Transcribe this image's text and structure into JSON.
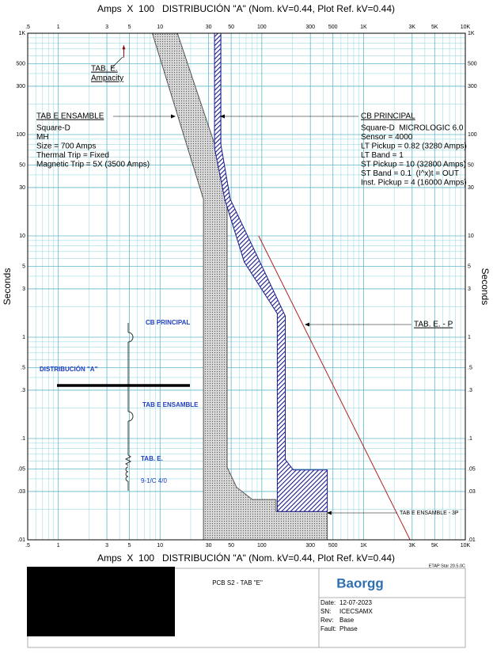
{
  "chart_data": {
    "type": "line",
    "title": "Amps  X  100   DISTRIBUCIÓN \"A\" (Nom. kV=0.44, Plot Ref. kV=0.44)",
    "y_label": "Seconds",
    "log_x": true,
    "log_y": true,
    "grid": true,
    "grid_color": "#9fdce3",
    "xlim": [
      0.5,
      10000
    ],
    "ylim": [
      0.01,
      1000
    ],
    "xticks": [
      {
        "value": 0.5,
        "label": ".5"
      },
      1,
      3,
      5,
      10,
      30,
      50,
      100,
      300,
      500,
      {
        "value": 1000,
        "label": "1K"
      },
      {
        "value": 3000,
        "label": "3K"
      },
      {
        "value": 5000,
        "label": "5K"
      },
      {
        "value": 10000,
        "label": "10K"
      }
    ],
    "yticks": [
      {
        "value": 0.01,
        "label": ".01"
      },
      {
        "value": 0.03,
        "label": ".03"
      },
      {
        "value": 0.05,
        "label": ".05"
      },
      {
        "value": 0.1,
        "label": ".1"
      },
      {
        "value": 0.3,
        "label": ".3"
      },
      {
        "value": 0.5,
        "label": ".5"
      },
      1,
      3,
      5,
      10,
      30,
      50,
      100,
      300,
      500,
      {
        "value": 1000,
        "label": "1K"
      }
    ],
    "xgrid": [
      0.6,
      0.7,
      0.8,
      0.9,
      2,
      4,
      6,
      7,
      8,
      9,
      20,
      40,
      60,
      70,
      80,
      90,
      200,
      400,
      600,
      700,
      800,
      900,
      2000,
      4000,
      6000,
      7000,
      8000,
      9000
    ],
    "ygrid": [
      0.02,
      0.04,
      0.06,
      0.07,
      0.08,
      0.09,
      0.2,
      0.4,
      0.6,
      0.7,
      0.8,
      0.9,
      2,
      4,
      6,
      7,
      8,
      9,
      20,
      40,
      60,
      70,
      80,
      90,
      200,
      400,
      600,
      700,
      800,
      900
    ],
    "series": [
      {
        "name": "TAB E ENSAMBLE",
        "color": "#555555",
        "style": "dotted",
        "x": [
          8.4,
          14.8,
          34.3,
          45.6,
          45.6,
          56.5,
          80.8,
          138,
          138,
          440,
          440,
          26.7,
          26.7
        ],
        "values": [
          1000,
          1000,
          80.7,
          23,
          0.052,
          0.033,
          0.025,
          0.025,
          0.019,
          0.019,
          0.01,
          0.01,
          23
        ]
      },
      {
        "name": "CB PRINCIPAL",
        "color": "#1a1a8c",
        "style": "hatched",
        "x": [
          34.3,
          39.5,
          39.5,
          49,
          96,
          170,
          170,
          204,
          440,
          440,
          142,
          142,
          67.3,
          43.2,
          34.3
        ],
        "values": [
          1000,
          1000,
          80.7,
          23,
          5.5,
          1.62,
          0.062,
          0.049,
          0.049,
          0.019,
          0.019,
          1.71,
          5.5,
          23,
          73.6
        ]
      },
      {
        "name": "TAB. E. - P",
        "color": "#b22222",
        "style": "line",
        "x": [
          93,
          2866
        ],
        "values": [
          10,
          0.01
        ]
      },
      {
        "color": "#8b0000",
        "style": "arrow",
        "x": [
          4.4,
          4.4
        ],
        "values": [
          575,
          760
        ]
      }
    ],
    "annotations": {
      "ampacity": [
        "TAB. E.",
        "Ampacity"
      ],
      "tab_e_info": [
        "Square-D",
        "MH",
        "Size = 700 Amps",
        "Thermal Trip = Fixed",
        "Magnetic Trip = 5X (3500 Amps)"
      ],
      "cb_info": [
        "Square-D  MICROLOGIC 6.0",
        "Sensor = 4000",
        "LT Pickup = 0.82 (3280 Amps)",
        "LT Band = 1",
        "ST Pickup = 10 (32800 Amps)",
        "ST Band = 0.1  (I^x)t = OUT",
        "Inst. Pickup = 4 (16000 Amps)"
      ],
      "tab_e_3p": "TAB E ENSAMBLE - 3P"
    },
    "one_line": {
      "breaker": "CB PRINCIPAL",
      "bus": "DISTRIBUCIÓN \"A\"",
      "feeder": "TAB E ENSAMBLE",
      "load": "TAB. E.",
      "cable": "9-1/C 4/0"
    }
  },
  "title_block": {
    "version": "ETAP Star 20.5.0C",
    "project": "PCB S2 - TAB \"E\"",
    "logo": "Baorgg",
    "fields": [
      {
        "label": "Date:",
        "value": "12-07-2023"
      },
      {
        "label": "SN:",
        "value": "ICECSAMX"
      },
      {
        "label": "Rev:",
        "value": "Base"
      },
      {
        "label": "Fault:",
        "value": "Phase"
      }
    ]
  }
}
